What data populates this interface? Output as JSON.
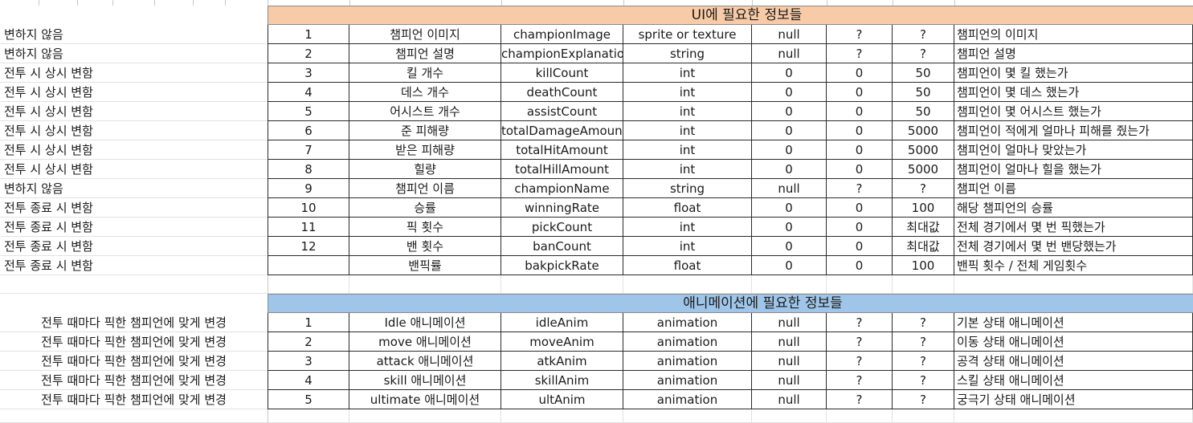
{
  "ui_section": {
    "title": "UI에 필요한 정보들",
    "rows": [
      {
        "note": "변하지 않음",
        "no": "1",
        "name": "챔피언 이미지",
        "var": "championImage",
        "type": "sprite or texture",
        "default": "null",
        "min": "?",
        "max": "?",
        "desc": "챔피언의 이미지"
      },
      {
        "note": "변하지 않음",
        "no": "2",
        "name": "챔피언 설명",
        "var": "championExplanation",
        "type": "string",
        "default": "null",
        "min": "?",
        "max": "?",
        "desc": "챔피언 설명"
      },
      {
        "note": "전투 시 상시 변함",
        "no": "3",
        "name": "킬 개수",
        "var": "killCount",
        "type": "int",
        "default": "0",
        "min": "0",
        "max": "50",
        "desc": "챔피언이 몇 킬 했는가"
      },
      {
        "note": "전투 시 상시 변함",
        "no": "4",
        "name": "데스 개수",
        "var": "deathCount",
        "type": "int",
        "default": "0",
        "min": "0",
        "max": "50",
        "desc": "챔피언이 몇 데스 했는가"
      },
      {
        "note": "전투 시 상시 변함",
        "no": "5",
        "name": "어시스트 개수",
        "var": "assistCount",
        "type": "int",
        "default": "0",
        "min": "0",
        "max": "50",
        "desc": "챔피언이 몇 어시스트 했는가"
      },
      {
        "note": "전투 시 상시 변함",
        "no": "6",
        "name": "준 피해량",
        "var": "totalDamageAmount",
        "type": "int",
        "default": "0",
        "min": "0",
        "max": "5000",
        "desc": "챔피언이 적에게 얼마나 피해를 줬는가"
      },
      {
        "note": "전투 시 상시 변함",
        "no": "7",
        "name": "받은 피해량",
        "var": "totalHitAmount",
        "type": "int",
        "default": "0",
        "min": "0",
        "max": "5000",
        "desc": "챔피언이 얼마나 맞았는가"
      },
      {
        "note": "전투 시 상시 변함",
        "no": "8",
        "name": "힐량",
        "var": "totalHillAmount",
        "type": "int",
        "default": "0",
        "min": "0",
        "max": "5000",
        "desc": "챔피언이 얼마나 힐을 했는가"
      },
      {
        "note": "변하지 않음",
        "no": "9",
        "name": "챔피언 이름",
        "var": "championName",
        "type": "string",
        "default": "null",
        "min": "?",
        "max": "?",
        "desc": "챔피언 이름"
      },
      {
        "note": "전투 종료 시 변함",
        "no": "10",
        "name": "승률",
        "var": "winningRate",
        "type": "float",
        "default": "0",
        "min": "0",
        "max": "100",
        "desc": "해당 챔피언의 승률"
      },
      {
        "note": "전투 종료 시 변함",
        "no": "11",
        "name": "픽 횟수",
        "var": "pickCount",
        "type": "int",
        "default": "0",
        "min": "0",
        "max": "최대값",
        "desc": "전체 경기에서 몇 번 픽했는가"
      },
      {
        "note": "전투 종료 시 변함",
        "no": "12",
        "name": "밴 횟수",
        "var": "banCount",
        "type": "int",
        "default": "0",
        "min": "0",
        "max": "최대값",
        "desc": "전체 경기에서 몇 번 밴당했는가"
      },
      {
        "note": "전투 종료 시 변함",
        "no": "",
        "name": "밴픽률",
        "var": "bakpickRate",
        "type": "float",
        "default": "0",
        "min": "0",
        "max": "100",
        "desc": "밴픽 횟수 / 전체 게임횟수"
      }
    ]
  },
  "anim_section": {
    "title": "애니메이션에 필요한 정보들",
    "rows": [
      {
        "note": "전투 때마다 픽한 챔피언에 맞게 변경",
        "no": "1",
        "name": "Idle 애니메이션",
        "var": "idleAnim",
        "type": "animation",
        "default": "null",
        "min": "?",
        "max": "?",
        "desc": "기본 상태 애니메이션"
      },
      {
        "note": "전투 때마다 픽한 챔피언에 맞게 변경",
        "no": "2",
        "name": "move 애니메이션",
        "var": "moveAnim",
        "type": "animation",
        "default": "null",
        "min": "?",
        "max": "?",
        "desc": "이동 상태 애니메이션"
      },
      {
        "note": "전투 때마다 픽한 챔피언에 맞게 변경",
        "no": "3",
        "name": "attack 애니메이션",
        "var": "atkAnim",
        "type": "animation",
        "default": "null",
        "min": "?",
        "max": "?",
        "desc": "공격 상태 애니메이션"
      },
      {
        "note": "전투 때마다 픽한 챔피언에 맞게 변경",
        "no": "4",
        "name": "skill 애니메이션",
        "var": "skillAnim",
        "type": "animation",
        "default": "null",
        "min": "?",
        "max": "?",
        "desc": "스킬 상태 애니메이션"
      },
      {
        "note": "전투 때마다 픽한 챔피언에 맞게 변경",
        "no": "5",
        "name": "ultimate 애니메이션",
        "var": "ultAnim",
        "type": "animation",
        "default": "null",
        "min": "?",
        "max": "?",
        "desc": "궁극기 상태 애니메이션"
      }
    ]
  },
  "colors": {
    "ui_header": "#f8cba8",
    "anim_header": "#9fc5e8",
    "grid": "#2a2a2a",
    "faint_grid": "#e2e2e2"
  }
}
